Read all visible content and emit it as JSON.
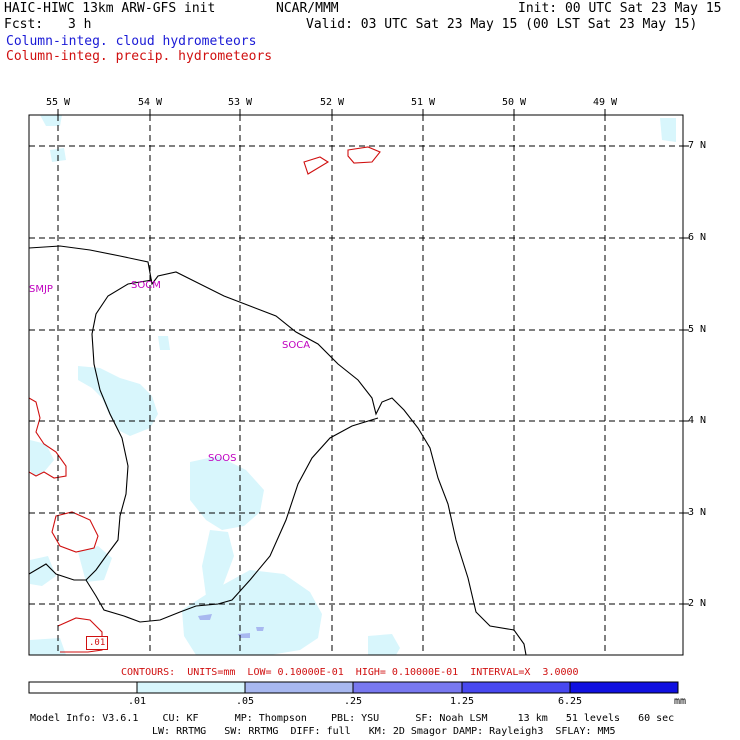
{
  "header": {
    "title": "HAIC-HIWC 13km ARW-GFS init",
    "org": "NCAR/MMM",
    "init": "Init: 00 UTC Sat 23 May 15",
    "fcst_label": "Fcst:",
    "fcst_value": "3 h",
    "valid": "Valid: 03 UTC Sat 23 May 15 (00 LST Sat 23 May 15)",
    "legend_cloud": "Column-integ. cloud hydrometeors",
    "legend_precip": "Column-integ. precip. hydrometeors"
  },
  "colors": {
    "cloud_text": "#1a1ad6",
    "precip_text": "#d01010",
    "station": "#c000c0",
    "fill_1": "#d8f6fc",
    "fill_2": "#a8b8f0",
    "fill_3": "#7878f0",
    "fill_4": "#4848f0",
    "fill_5": "#1010e0"
  },
  "map": {
    "lon_labels": [
      "55 W",
      "54 W",
      "53 W",
      "52 W",
      "51 W",
      "50 W",
      "49 W"
    ],
    "lat_labels": [
      "7 N",
      "6 N",
      "5 N",
      "4 N",
      "3 N",
      "2 N"
    ],
    "stations": [
      "SMJP",
      "SOCM",
      "SOCA",
      "SOOS"
    ],
    "contour_label": ".01"
  },
  "contours_line": "CONTOURS:  UNITS=mm  LOW= 0.10000E-01  HIGH= 0.10000E-01  INTERVAL=X  3.0000",
  "colorbar": {
    "ticks": [
      ".01",
      ".05",
      ".25",
      "1.25",
      "6.25"
    ],
    "units": "mm"
  },
  "model_info": {
    "line1": "Model Info: V3.6.1    CU: KF      MP: Thompson    PBL: YSU      SF: Noah LSM     13 km   51 levels   60 sec",
    "line2": "LW: RRTMG   SW: RRTMG  DIFF: full   KM: 2D Smagor DAMP: Rayleigh3  SFLAY: MM5"
  }
}
